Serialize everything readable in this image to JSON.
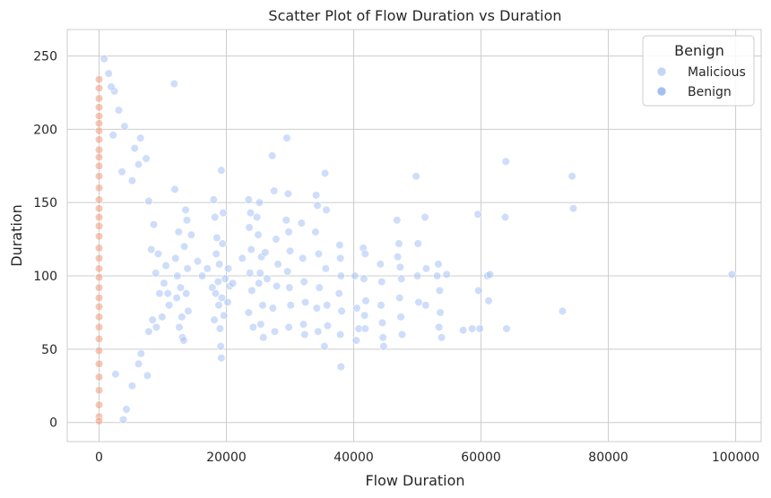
{
  "chart_data": {
    "type": "scatter",
    "title": "Scatter Plot of Flow Duration vs Duration",
    "xlabel": "Flow Duration",
    "ylabel": "Duration",
    "xlim": [
      -5000,
      104000
    ],
    "ylim": [
      -13,
      268
    ],
    "xticks": [
      0,
      20000,
      40000,
      60000,
      80000,
      100000
    ],
    "xtick_labels": [
      "0",
      "20000",
      "40000",
      "60000",
      "80000",
      "100000"
    ],
    "yticks": [
      0,
      50,
      100,
      150,
      200,
      250
    ],
    "ytick_labels": [
      "0",
      "50",
      "100",
      "150",
      "200",
      "250"
    ],
    "grid": true,
    "legend": {
      "title": "Benign",
      "placement": "top-right",
      "entries": [
        {
          "label": "Malicious",
          "color": "#c5d6f4"
        },
        {
          "label": "Benign",
          "color": "#a5c0f0"
        }
      ]
    },
    "series": [
      {
        "name": "Malicious",
        "color": "#aec7f5",
        "points": [
          [
            11800,
            231
          ],
          [
            11900,
            159
          ],
          [
            12500,
            130
          ],
          [
            12000,
            112
          ],
          [
            12300,
            100
          ],
          [
            12800,
            92
          ],
          [
            12200,
            85
          ],
          [
            13000,
            72
          ],
          [
            12600,
            65
          ],
          [
            13100,
            58
          ],
          [
            13600,
            145
          ],
          [
            13800,
            138
          ],
          [
            13400,
            120
          ],
          [
            13900,
            105
          ],
          [
            13700,
            88
          ],
          [
            14000,
            76
          ],
          [
            13300,
            56
          ],
          [
            14500,
            128
          ],
          [
            15500,
            110
          ],
          [
            16200,
            100
          ],
          [
            17000,
            105
          ],
          [
            17800,
            92
          ],
          [
            18000,
            152
          ],
          [
            18200,
            140
          ],
          [
            18500,
            126
          ],
          [
            18400,
            115
          ],
          [
            18900,
            108
          ],
          [
            18700,
            96
          ],
          [
            18300,
            88
          ],
          [
            18800,
            80
          ],
          [
            18100,
            70
          ],
          [
            19000,
            64
          ],
          [
            19200,
            172
          ],
          [
            19500,
            143
          ],
          [
            19400,
            122
          ],
          [
            19800,
            98
          ],
          [
            19300,
            85
          ],
          [
            19600,
            73
          ],
          [
            19100,
            52
          ],
          [
            19200,
            44
          ],
          [
            20300,
            105
          ],
          [
            20500,
            93
          ],
          [
            20200,
            82
          ],
          [
            21000,
            95
          ],
          [
            22500,
            112
          ],
          [
            23500,
            152
          ],
          [
            23800,
            143
          ],
          [
            23600,
            133
          ],
          [
            23900,
            118
          ],
          [
            23700,
            102
          ],
          [
            24000,
            90
          ],
          [
            23500,
            75
          ],
          [
            24200,
            65
          ],
          [
            24800,
            140
          ],
          [
            25200,
            150
          ],
          [
            25000,
            128
          ],
          [
            25500,
            113
          ],
          [
            25300,
            102
          ],
          [
            25100,
            95
          ],
          [
            25700,
            80
          ],
          [
            25400,
            67
          ],
          [
            25800,
            58
          ],
          [
            26100,
            116
          ],
          [
            26400,
            98
          ],
          [
            27200,
            182
          ],
          [
            27500,
            158
          ],
          [
            27800,
            125
          ],
          [
            28100,
            108
          ],
          [
            27900,
            93
          ],
          [
            27300,
            78
          ],
          [
            27600,
            62
          ],
          [
            29500,
            194
          ],
          [
            29700,
            156
          ],
          [
            29400,
            138
          ],
          [
            29800,
            130
          ],
          [
            30000,
            117
          ],
          [
            29600,
            103
          ],
          [
            29900,
            92
          ],
          [
            30100,
            80
          ],
          [
            29800,
            65
          ],
          [
            31800,
            136
          ],
          [
            32000,
            112
          ],
          [
            32200,
            96
          ],
          [
            32400,
            82
          ],
          [
            32100,
            67
          ],
          [
            32300,
            60
          ],
          [
            34100,
            155
          ],
          [
            34300,
            148
          ],
          [
            34000,
            130
          ],
          [
            34500,
            115
          ],
          [
            34600,
            92
          ],
          [
            34200,
            78
          ],
          [
            34400,
            62
          ],
          [
            35500,
            170
          ],
          [
            35700,
            145
          ],
          [
            35600,
            105
          ],
          [
            35800,
            80
          ],
          [
            35900,
            66
          ],
          [
            35400,
            52
          ],
          [
            37800,
            121
          ],
          [
            37900,
            112
          ],
          [
            38000,
            100
          ],
          [
            37700,
            88
          ],
          [
            38100,
            76
          ],
          [
            37900,
            60
          ],
          [
            38000,
            38
          ],
          [
            40200,
            100
          ],
          [
            40500,
            78
          ],
          [
            40800,
            64
          ],
          [
            40400,
            56
          ],
          [
            41500,
            119
          ],
          [
            41800,
            115
          ],
          [
            41600,
            98
          ],
          [
            41900,
            83
          ],
          [
            41700,
            73
          ],
          [
            41800,
            64
          ],
          [
            44200,
            108
          ],
          [
            44400,
            96
          ],
          [
            44300,
            80
          ],
          [
            44500,
            68
          ],
          [
            44600,
            58
          ],
          [
            44700,
            52
          ],
          [
            46800,
            138
          ],
          [
            47100,
            122
          ],
          [
            46900,
            113
          ],
          [
            47300,
            106
          ],
          [
            47500,
            98
          ],
          [
            47200,
            85
          ],
          [
            47400,
            72
          ],
          [
            47600,
            60
          ],
          [
            49800,
            168
          ],
          [
            50100,
            122
          ],
          [
            50000,
            100
          ],
          [
            50200,
            82
          ],
          [
            51200,
            140
          ],
          [
            51400,
            105
          ],
          [
            51300,
            80
          ],
          [
            53300,
            108
          ],
          [
            53100,
            100
          ],
          [
            53500,
            90
          ],
          [
            53600,
            75
          ],
          [
            53400,
            65
          ],
          [
            53800,
            58
          ],
          [
            54600,
            101
          ],
          [
            57200,
            63
          ],
          [
            58600,
            64
          ],
          [
            59500,
            142
          ],
          [
            59600,
            90
          ],
          [
            59800,
            64
          ],
          [
            61000,
            100
          ],
          [
            61400,
            101
          ],
          [
            61200,
            83
          ],
          [
            63900,
            178
          ],
          [
            63800,
            140
          ],
          [
            64000,
            64
          ],
          [
            74300,
            168
          ],
          [
            74500,
            146
          ],
          [
            72800,
            76
          ],
          [
            99400,
            101
          ],
          [
            2200,
            196
          ],
          [
            3100,
            213
          ],
          [
            4000,
            202
          ],
          [
            5600,
            187
          ],
          [
            6500,
            194
          ],
          [
            6200,
            176
          ],
          [
            7400,
            180
          ],
          [
            5200,
            165
          ],
          [
            3600,
            171
          ],
          [
            7800,
            151
          ],
          [
            8200,
            118
          ],
          [
            8900,
            102
          ],
          [
            9500,
            88
          ],
          [
            10200,
            95
          ],
          [
            11000,
            80
          ],
          [
            8400,
            70
          ],
          [
            7800,
            62
          ],
          [
            6600,
            47
          ],
          [
            6200,
            40
          ],
          [
            5200,
            25
          ],
          [
            4300,
            9
          ],
          [
            3800,
            2
          ],
          [
            2600,
            33
          ],
          [
            7600,
            32
          ],
          [
            9000,
            65
          ],
          [
            9900,
            72
          ],
          [
            10800,
            88
          ],
          [
            8600,
            135
          ],
          [
            9300,
            115
          ],
          [
            10500,
            107
          ],
          [
            1500,
            238
          ],
          [
            2400,
            226
          ],
          [
            1900,
            229
          ],
          [
            800,
            248
          ]
        ]
      },
      {
        "name": "Benign",
        "color": "#f0a285",
        "points": [
          [
            0,
            234
          ],
          [
            0,
            228
          ],
          [
            0,
            221
          ],
          [
            0,
            215
          ],
          [
            0,
            209
          ],
          [
            0,
            204
          ],
          [
            0,
            199
          ],
          [
            0,
            193
          ],
          [
            0,
            186
          ],
          [
            0,
            181
          ],
          [
            0,
            175
          ],
          [
            0,
            168
          ],
          [
            0,
            160
          ],
          [
            0,
            152
          ],
          [
            0,
            146
          ],
          [
            0,
            140
          ],
          [
            0,
            134
          ],
          [
            0,
            127
          ],
          [
            0,
            119
          ],
          [
            0,
            112
          ],
          [
            0,
            105
          ],
          [
            0,
            99
          ],
          [
            0,
            92
          ],
          [
            0,
            85
          ],
          [
            0,
            79
          ],
          [
            0,
            72
          ],
          [
            0,
            65
          ],
          [
            0,
            57
          ],
          [
            0,
            49
          ],
          [
            0,
            40
          ],
          [
            0,
            31
          ],
          [
            0,
            22
          ],
          [
            0,
            12
          ],
          [
            0,
            4
          ],
          [
            0,
            1
          ]
        ]
      }
    ]
  }
}
